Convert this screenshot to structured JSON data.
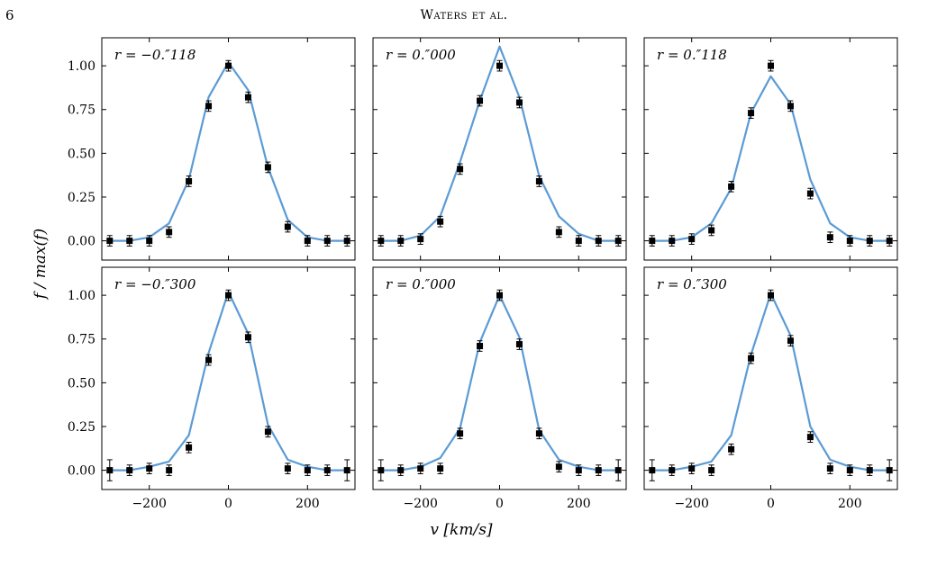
{
  "header": {
    "page_number": "6",
    "running_head": "Waters et al."
  },
  "chart_data": {
    "type": "line",
    "shared": {
      "x": [
        -300,
        -250,
        -200,
        -150,
        -100,
        -50,
        0,
        50,
        100,
        150,
        200,
        250,
        300
      ],
      "xlim": [
        -320,
        320
      ],
      "ylim": [
        -0.11,
        1.16
      ],
      "xticks": [
        -200,
        0,
        200
      ],
      "xtick_labels": [
        "−200",
        "0",
        "200"
      ],
      "yticks": [
        0.0,
        0.25,
        0.5,
        0.75,
        1.0
      ],
      "ytick_labels": [
        "0.00",
        "0.25",
        "0.50",
        "0.75",
        "1.00"
      ],
      "xlabel": "v [km/s]",
      "ylabel": "f / max(f)",
      "grid": false,
      "model_color": "#5b9bd5",
      "data_color": "#000000"
    },
    "panels": [
      {
        "label": "r = −0.″118",
        "model": [
          0.0,
          0.0,
          0.02,
          0.1,
          0.35,
          0.82,
          1.02,
          0.86,
          0.42,
          0.12,
          0.02,
          0.0,
          0.0
        ],
        "data": [
          0.0,
          0.0,
          0.0,
          0.05,
          0.34,
          0.77,
          1.0,
          0.82,
          0.42,
          0.08,
          0.0,
          0.0,
          0.0
        ],
        "err": [
          0.03,
          0.03,
          0.03,
          0.03,
          0.03,
          0.03,
          0.03,
          0.03,
          0.03,
          0.03,
          0.03,
          0.03,
          0.03
        ]
      },
      {
        "label": "r = 0.″000",
        "model": [
          0.0,
          0.0,
          0.03,
          0.14,
          0.45,
          0.8,
          1.11,
          0.82,
          0.37,
          0.14,
          0.04,
          0.0,
          0.0
        ],
        "data": [
          0.0,
          0.0,
          0.01,
          0.11,
          0.41,
          0.8,
          1.0,
          0.79,
          0.34,
          0.05,
          0.0,
          0.0,
          0.0
        ],
        "err": [
          0.03,
          0.03,
          0.03,
          0.03,
          0.03,
          0.03,
          0.03,
          0.03,
          0.03,
          0.03,
          0.03,
          0.03,
          0.03
        ]
      },
      {
        "label": "r = 0.″118",
        "model": [
          0.0,
          0.0,
          0.02,
          0.1,
          0.3,
          0.73,
          0.94,
          0.78,
          0.35,
          0.1,
          0.02,
          0.0,
          0.0
        ],
        "data": [
          0.0,
          0.0,
          0.01,
          0.06,
          0.31,
          0.73,
          1.0,
          0.77,
          0.27,
          0.02,
          0.0,
          0.0,
          0.0
        ],
        "err": [
          0.03,
          0.03,
          0.03,
          0.03,
          0.03,
          0.03,
          0.03,
          0.03,
          0.03,
          0.03,
          0.03,
          0.03,
          0.03
        ]
      },
      {
        "label": "r = −0.″300",
        "model": [
          0.0,
          0.0,
          0.02,
          0.05,
          0.2,
          0.67,
          1.02,
          0.78,
          0.26,
          0.06,
          0.02,
          0.0,
          0.0
        ],
        "data": [
          0.0,
          0.0,
          0.01,
          0.0,
          0.13,
          0.63,
          1.0,
          0.76,
          0.22,
          0.01,
          0.0,
          0.0,
          0.0
        ],
        "err": [
          0.06,
          0.03,
          0.03,
          0.03,
          0.03,
          0.03,
          0.03,
          0.03,
          0.03,
          0.03,
          0.03,
          0.03,
          0.06
        ]
      },
      {
        "label": "r = 0.″000",
        "model": [
          0.0,
          0.0,
          0.02,
          0.07,
          0.24,
          0.73,
          1.0,
          0.76,
          0.23,
          0.06,
          0.02,
          0.0,
          0.0
        ],
        "data": [
          0.0,
          0.0,
          0.01,
          0.01,
          0.21,
          0.71,
          1.0,
          0.72,
          0.21,
          0.02,
          0.0,
          0.0,
          0.0
        ],
        "err": [
          0.06,
          0.03,
          0.03,
          0.03,
          0.03,
          0.03,
          0.03,
          0.03,
          0.03,
          0.03,
          0.03,
          0.03,
          0.06
        ]
      },
      {
        "label": "r = 0.″300",
        "model": [
          0.0,
          0.0,
          0.02,
          0.05,
          0.2,
          0.66,
          1.01,
          0.77,
          0.25,
          0.06,
          0.02,
          0.0,
          0.0
        ],
        "data": [
          0.0,
          0.0,
          0.01,
          0.0,
          0.12,
          0.64,
          1.0,
          0.74,
          0.19,
          0.01,
          0.0,
          0.0,
          0.0
        ],
        "err": [
          0.06,
          0.03,
          0.03,
          0.03,
          0.03,
          0.03,
          0.03,
          0.03,
          0.03,
          0.03,
          0.03,
          0.03,
          0.06
        ]
      }
    ]
  }
}
